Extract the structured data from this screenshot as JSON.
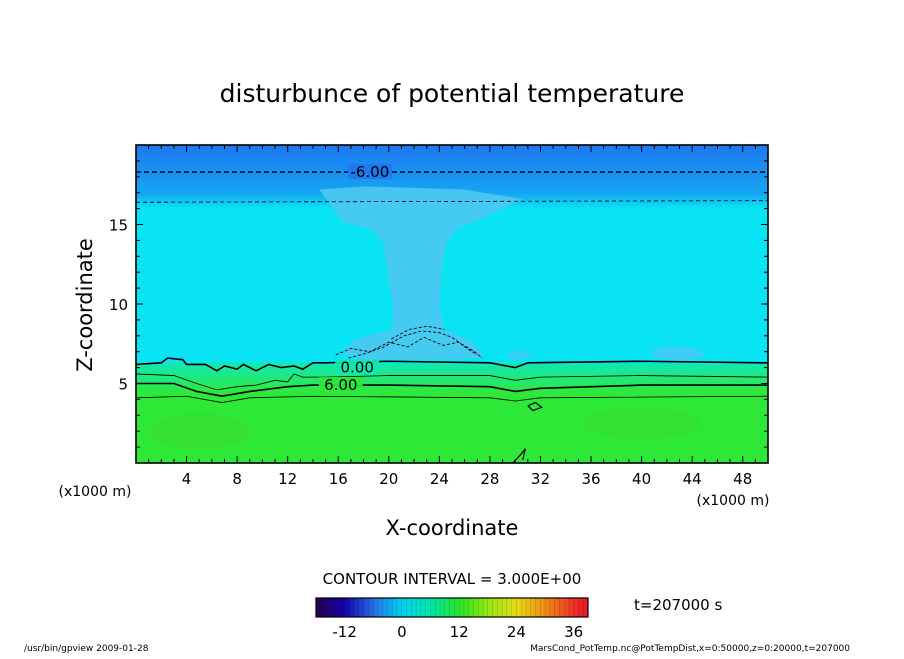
{
  "chart_data": {
    "type": "heatmap",
    "title": "disturbunce of potential temperature",
    "xlabel": "X-coordinate",
    "ylabel": "Z-coordinate",
    "x_unit_left": "(x1000 m)",
    "x_unit_right": "(x1000 m)",
    "xlim": [
      0,
      50
    ],
    "ylim": [
      0,
      20
    ],
    "x_ticks": [
      4,
      8,
      12,
      16,
      20,
      24,
      28,
      32,
      36,
      40,
      44,
      48
    ],
    "y_ticks": [
      5,
      10,
      15
    ],
    "contour_labels": [
      {
        "text": "-6.00",
        "x": 18.5,
        "z": 18.3
      },
      {
        "text": "0.00",
        "x": 17.5,
        "z": 6.0
      },
      {
        "text": "6.00",
        "x": 16.2,
        "z": 4.9
      }
    ],
    "contour_interval_text": "CONTOUR INTERVAL = 3.000E+00",
    "colorbar": {
      "min": -18,
      "max": 39,
      "tick_values": [
        -12,
        0,
        12,
        24,
        36
      ],
      "tick_labels": [
        "-12",
        "0",
        "12",
        "24",
        "36"
      ]
    },
    "time_text": "t=207000 s",
    "footer_left": "/usr/bin/gpview  2009-01-28",
    "footer_right": "MarsCond_PotTemp.nc@PotTempDist,x=0:50000,z=0:20000,t=207000",
    "colors": {
      "top_band": "#1e78f0",
      "upper": "#08e4f4",
      "plume": "#4cc8f2",
      "transition": "#12e8b0",
      "lower": "#2ee838",
      "low_dark": "#3ad82c"
    }
  }
}
